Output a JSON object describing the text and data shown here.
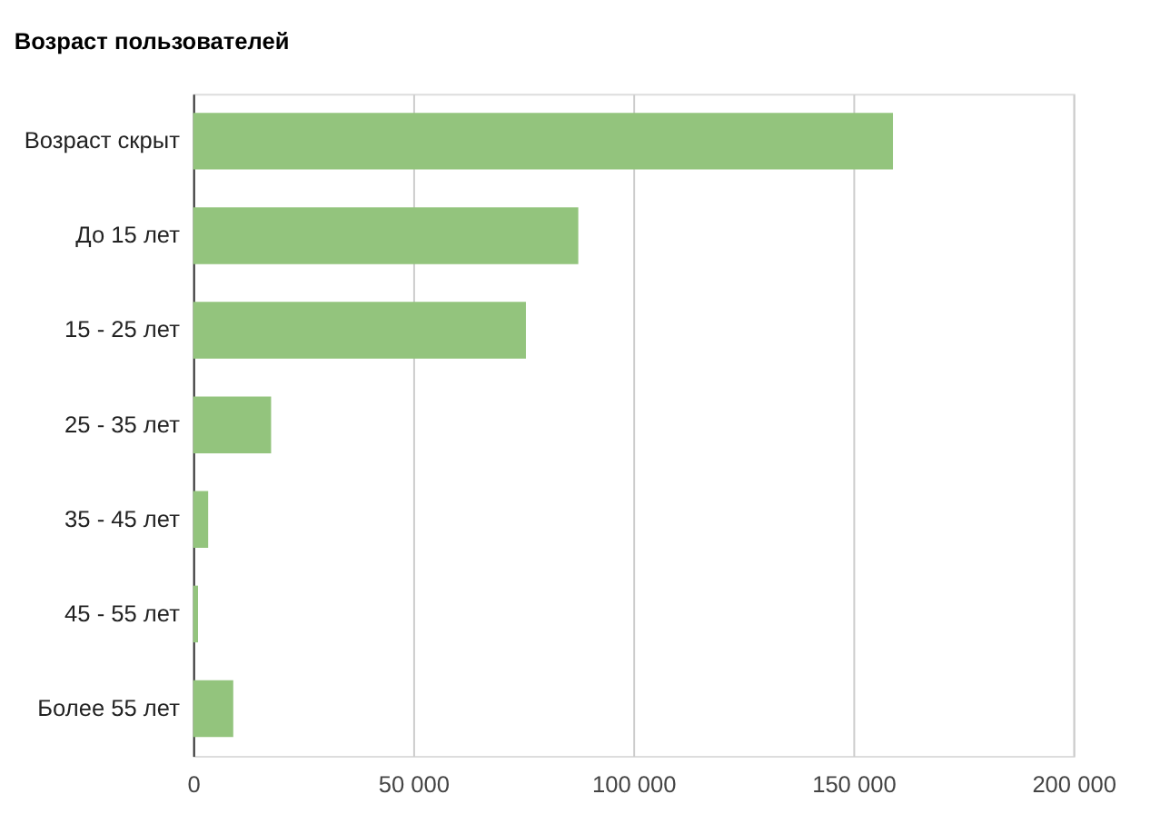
{
  "chart_data": {
    "type": "bar",
    "orientation": "horizontal",
    "title": "Возраст пользователей",
    "categories": [
      "Возраст скрыт",
      "До 15 лет",
      "15 - 25 лет",
      "25 - 35 лет",
      "35 - 45 лет",
      "45 - 55 лет",
      "Более 55 лет"
    ],
    "values": [
      159000,
      87500,
      75600,
      17700,
      3400,
      1100,
      9100
    ],
    "color": "#93c47d",
    "xlim": [
      0,
      200000
    ],
    "xticks": [
      0,
      {
        "value": 50000,
        "label": "50 000"
      },
      {
        "value": 100000,
        "label": "100 000"
      },
      {
        "value": 150000,
        "label": "150 000"
      },
      {
        "value": 200000,
        "label": "200 000"
      }
    ],
    "grid": "x"
  }
}
